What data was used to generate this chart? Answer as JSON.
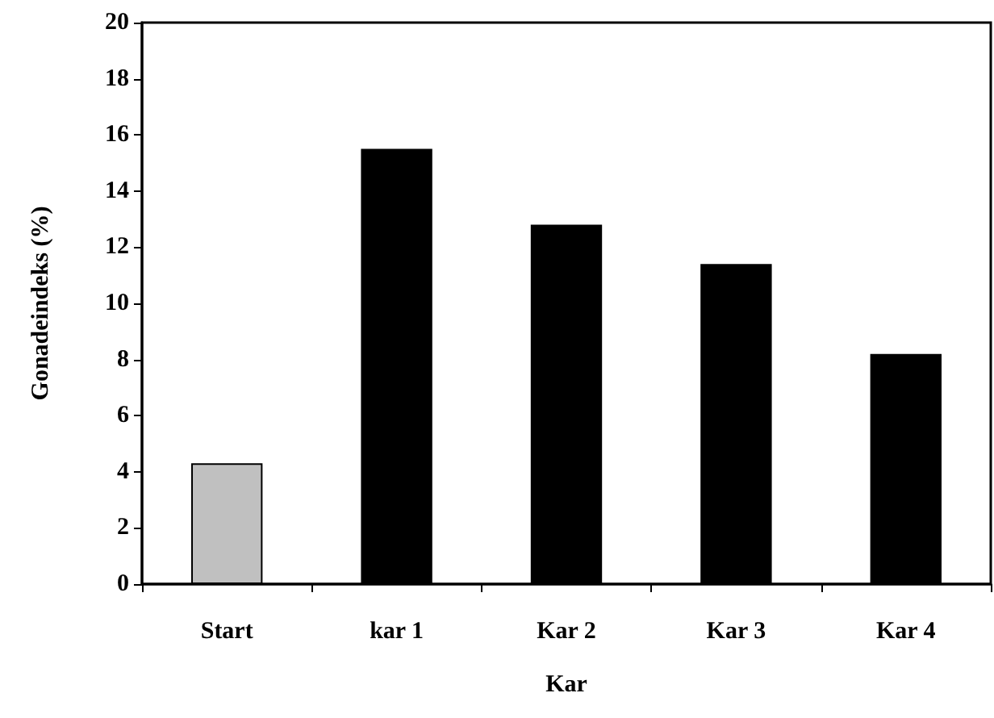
{
  "chart_data": {
    "type": "bar",
    "xlabel": "Kar",
    "ylabel": "Gonadeindeks (%)",
    "categories": [
      "Start",
      "kar 1",
      "Kar 2",
      "Kar 3",
      "Kar 4"
    ],
    "values": [
      4.3,
      15.5,
      12.8,
      11.4,
      8.2
    ],
    "colors": [
      "#c0c0c0",
      "#000000",
      "#000000",
      "#000000",
      "#000000"
    ],
    "ylim": [
      0,
      20
    ],
    "yticks": [
      0,
      2,
      4,
      6,
      8,
      10,
      12,
      14,
      16,
      18,
      20
    ],
    "grid": false
  }
}
